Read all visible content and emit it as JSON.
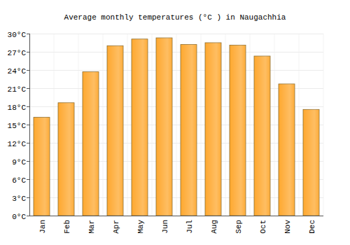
{
  "chart_data": {
    "type": "bar",
    "title": "Average monthly temperatures (°C ) in Naugachhia",
    "categories": [
      "Jan",
      "Feb",
      "Mar",
      "Apr",
      "May",
      "Jun",
      "Jul",
      "Aug",
      "Sep",
      "Oct",
      "Nov",
      "Dec"
    ],
    "values": [
      16.2,
      18.6,
      23.7,
      28.0,
      29.1,
      29.3,
      28.2,
      28.5,
      28.1,
      26.3,
      21.7,
      17.5
    ],
    "color": "#fea82f",
    "ylim": [
      0,
      30
    ],
    "yticks": [
      {
        "value": 0,
        "label": "0°C"
      },
      {
        "value": 3,
        "label": "3°C"
      },
      {
        "value": 6,
        "label": "6°C"
      },
      {
        "value": 9,
        "label": "9°C"
      },
      {
        "value": 12,
        "label": "12°C"
      },
      {
        "value": 15,
        "label": "15°C"
      },
      {
        "value": 18,
        "label": "18°C"
      },
      {
        "value": 21,
        "label": "21°C"
      },
      {
        "value": 24,
        "label": "24°C"
      },
      {
        "value": 27,
        "label": "27°C"
      },
      {
        "value": 30,
        "label": "30°C"
      }
    ],
    "grid": true
  }
}
